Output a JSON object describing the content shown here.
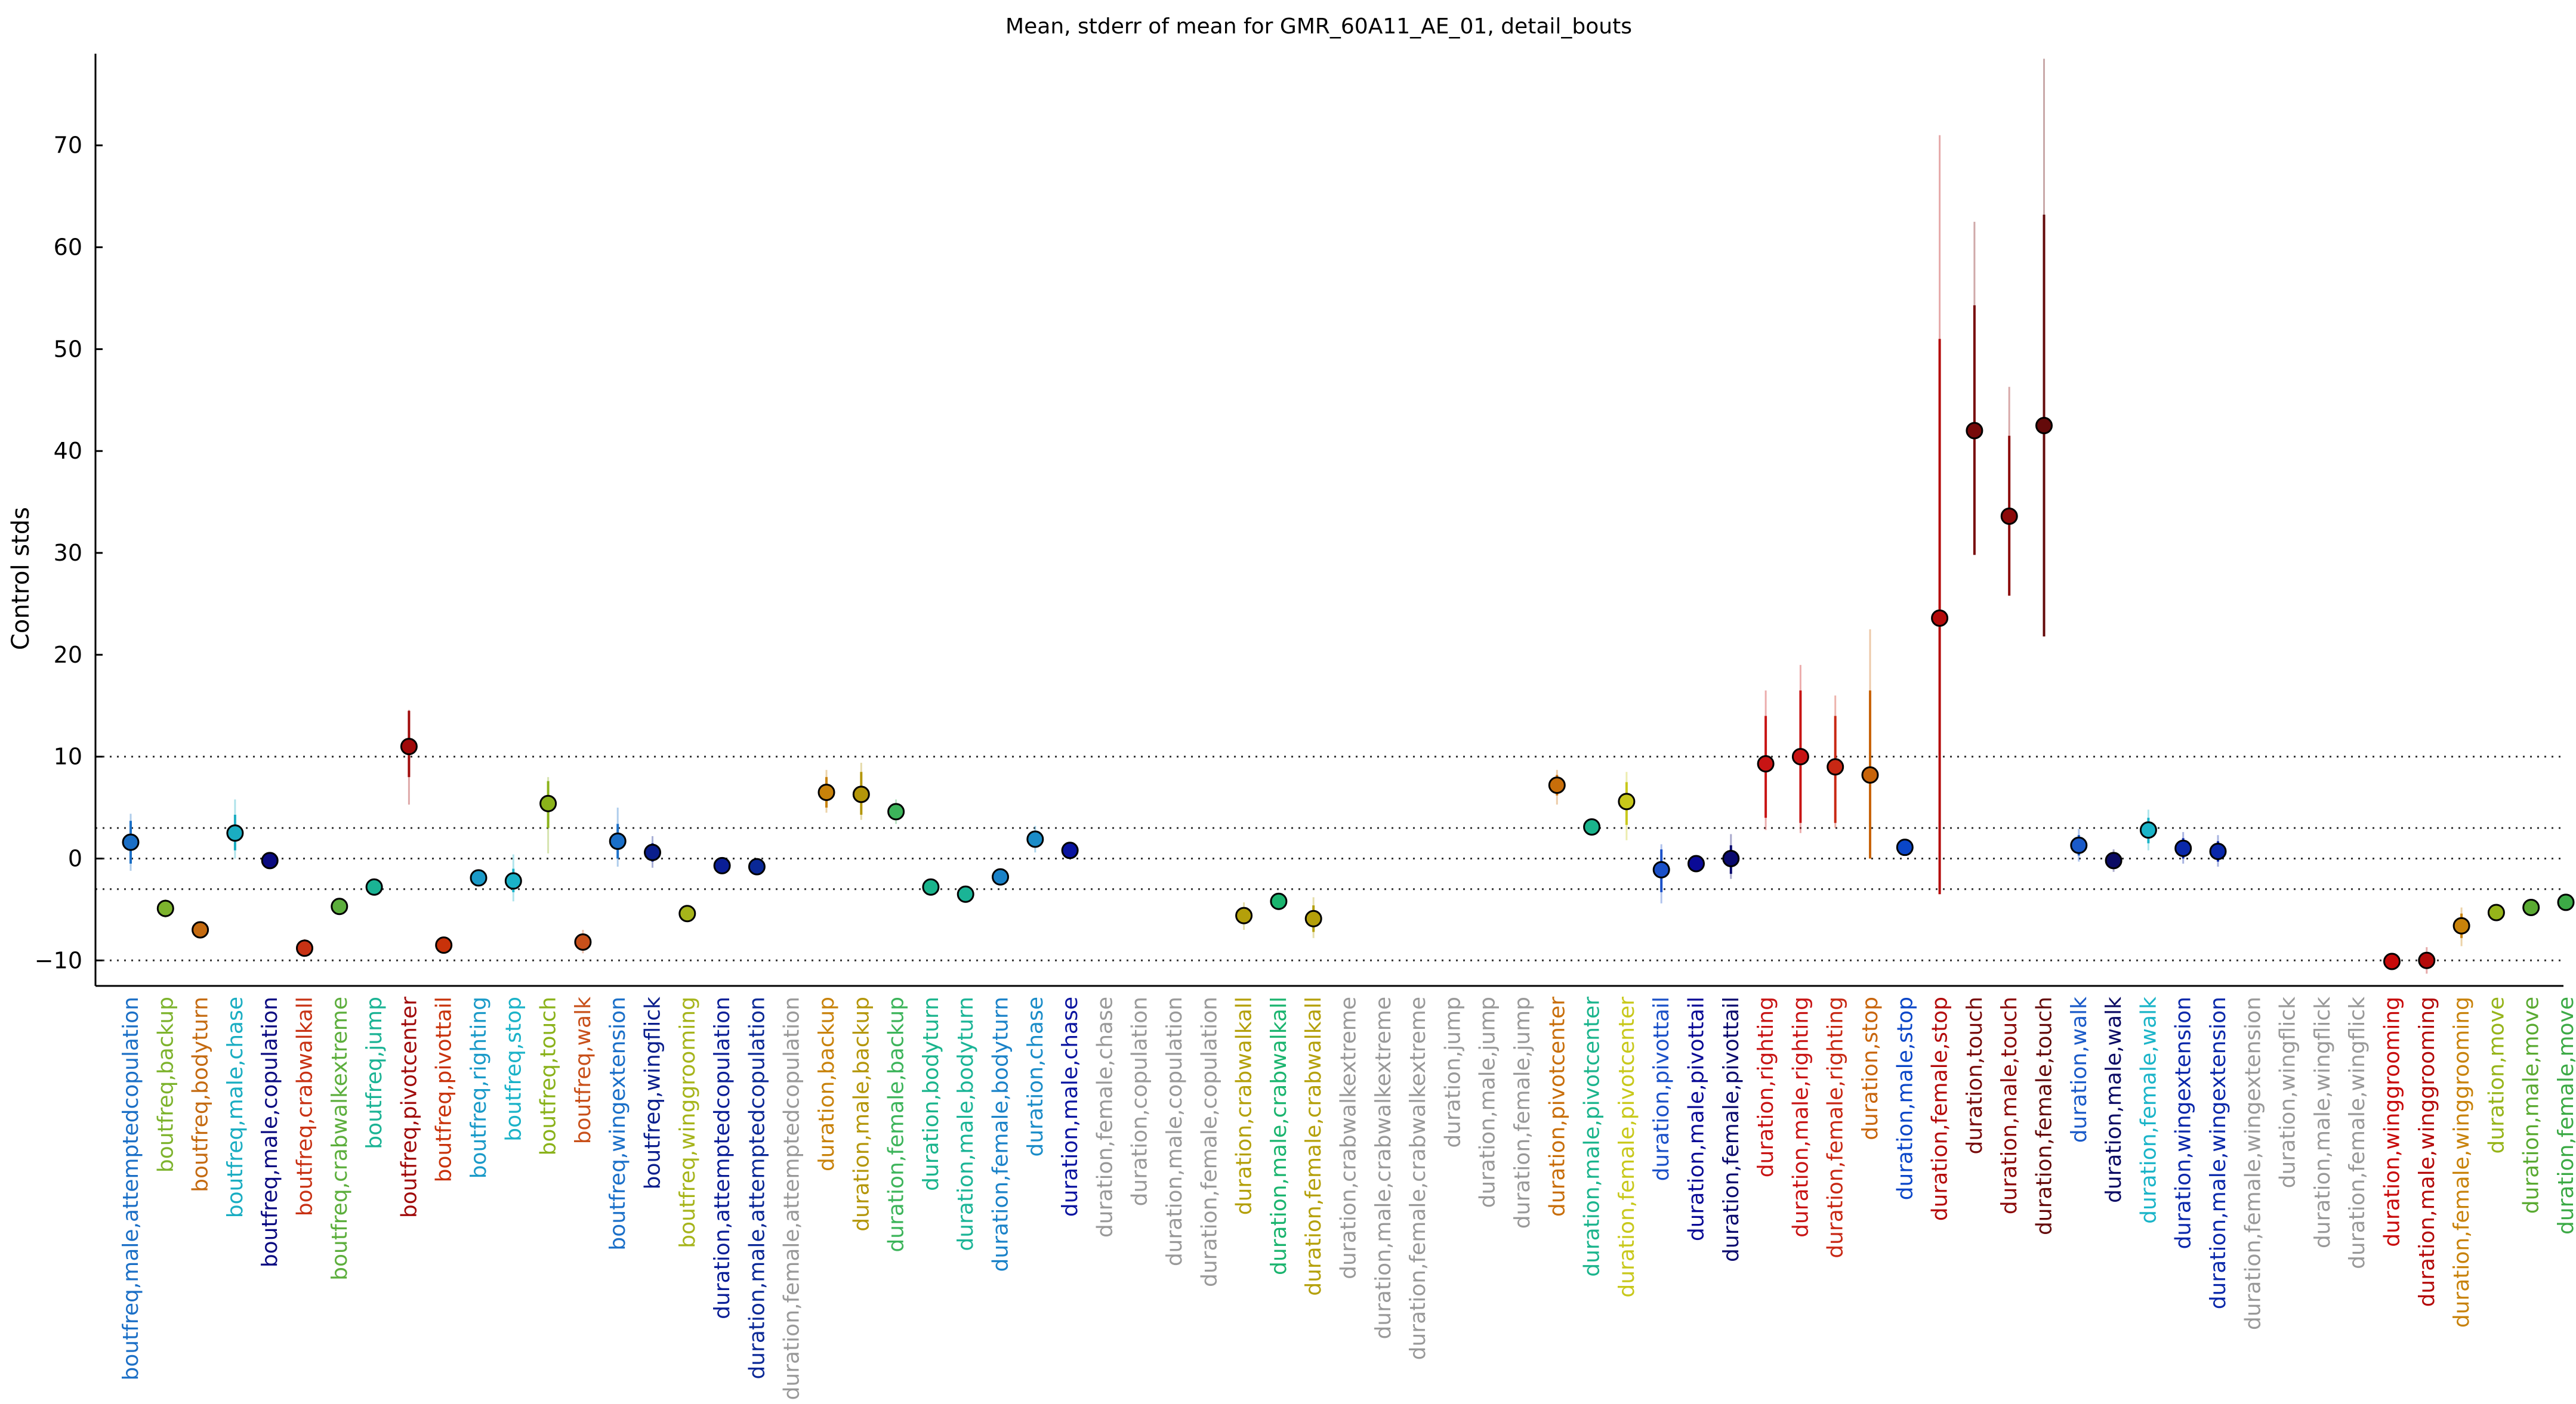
{
  "chart_data": {
    "type": "scatter",
    "title": "Mean, stderr of mean for GMR_60A11_AE_01, detail_bouts",
    "xlabel": "",
    "ylabel": "Control stds",
    "ylim": [
      -12.5,
      79
    ],
    "yticks": [
      -10,
      0,
      10,
      20,
      30,
      40,
      50,
      60,
      70
    ],
    "reference_lines": [
      10,
      3,
      0,
      -3,
      -10
    ],
    "grid": false,
    "legend": "none",
    "points": [
      {
        "label": "boutfreq,male,attemptedcopulation",
        "mean": 1.6,
        "se_lo": -0.5,
        "se_hi": 3.7,
        "ci_lo": -1.2,
        "ci_hi": 4.4,
        "color": "#1b6fc6"
      },
      {
        "label": "boutfreq,backup",
        "mean": -4.9,
        "se_lo": -5.4,
        "se_hi": -4.4,
        "ci_lo": -5.8,
        "ci_hi": -4.0,
        "color": "#7db32d"
      },
      {
        "label": "boutfreq,bodyturn",
        "mean": -7.0,
        "se_lo": -7.3,
        "se_hi": -6.7,
        "ci_lo": -7.6,
        "ci_hi": -6.4,
        "color": "#c46a10"
      },
      {
        "label": "boutfreq,male,chase",
        "mean": 2.5,
        "se_lo": 0.8,
        "se_hi": 4.3,
        "ci_lo": 0.0,
        "ci_hi": 5.8,
        "color": "#1aadc2"
      },
      {
        "label": "boutfreq,male,copulation",
        "mean": -0.2,
        "se_lo": -0.5,
        "se_hi": 0.1,
        "ci_lo": -0.8,
        "ci_hi": 0.4,
        "color": "#0a0a80"
      },
      {
        "label": "boutfreq,crabwalkall",
        "mean": -8.8,
        "se_lo": -9.2,
        "se_hi": -8.3,
        "ci_lo": -9.5,
        "ci_hi": -7.9,
        "color": "#c83214"
      },
      {
        "label": "boutfreq,crabwalkextreme",
        "mean": -4.7,
        "se_lo": -5.0,
        "se_hi": -4.4,
        "ci_lo": -5.3,
        "ci_hi": -4.1,
        "color": "#5cae3c"
      },
      {
        "label": "boutfreq,jump",
        "mean": -2.8,
        "se_lo": -3.1,
        "se_hi": -2.5,
        "ci_lo": -3.3,
        "ci_hi": -2.3,
        "color": "#1ab394"
      },
      {
        "label": "boutfreq,pivotcenter",
        "mean": 11.0,
        "se_lo": 8.0,
        "se_hi": 14.5,
        "ci_lo": 5.3,
        "ci_hi": 14.6,
        "color": "#a00a0a"
      },
      {
        "label": "boutfreq,pivottail",
        "mean": -8.5,
        "se_lo": -8.8,
        "se_hi": -8.2,
        "ci_lo": -9.1,
        "ci_hi": -7.9,
        "color": "#c8320a"
      },
      {
        "label": "boutfreq,righting",
        "mean": -1.9,
        "se_lo": -2.2,
        "se_hi": -1.6,
        "ci_lo": -2.5,
        "ci_hi": -1.3,
        "color": "#1a9ac8"
      },
      {
        "label": "boutfreq,stop",
        "mean": -2.2,
        "se_lo": -3.3,
        "se_hi": -1.0,
        "ci_lo": -4.2,
        "ci_hi": 0.4,
        "color": "#1ab2c8"
      },
      {
        "label": "boutfreq,touch",
        "mean": 5.4,
        "se_lo": 3.0,
        "se_hi": 7.6,
        "ci_lo": 0.5,
        "ci_hi": 8.0,
        "color": "#8ab21a"
      },
      {
        "label": "boutfreq,walk",
        "mean": -8.2,
        "se_lo": -8.8,
        "se_hi": -7.6,
        "ci_lo": -9.3,
        "ci_hi": -7.0,
        "color": "#c8501a"
      },
      {
        "label": "boutfreq,wingextension",
        "mean": 1.7,
        "se_lo": 0.0,
        "se_hi": 3.4,
        "ci_lo": -0.8,
        "ci_hi": 5.0,
        "color": "#1a6fc8"
      },
      {
        "label": "boutfreq,wingflick",
        "mean": 0.6,
        "se_lo": -0.3,
        "se_hi": 1.5,
        "ci_lo": -0.9,
        "ci_hi": 2.2,
        "color": "#0a1e8c"
      },
      {
        "label": "boutfreq,winggrooming",
        "mean": -5.4,
        "se_lo": -5.7,
        "se_hi": -5.1,
        "ci_lo": -6.0,
        "ci_hi": -4.8,
        "color": "#a6b41a"
      },
      {
        "label": "duration,attemptedcopulation",
        "mean": -0.7,
        "se_lo": -1.0,
        "se_hi": -0.4,
        "ci_lo": -1.3,
        "ci_hi": -0.1,
        "color": "#0a1e96"
      },
      {
        "label": "duration,male,attemptedcopulation",
        "mean": -0.8,
        "se_lo": -1.1,
        "se_hi": -0.5,
        "ci_lo": -1.4,
        "ci_hi": -0.2,
        "color": "#0a2896"
      },
      {
        "label": "duration,female,attemptedcopulation",
        "mean": null,
        "se_lo": null,
        "se_hi": null,
        "ci_lo": null,
        "ci_hi": null,
        "color": "#999999"
      },
      {
        "label": "duration,backup",
        "mean": 6.5,
        "se_lo": 5.0,
        "se_hi": 8.0,
        "ci_lo": 4.5,
        "ci_hi": 8.7,
        "color": "#c8820a"
      },
      {
        "label": "duration,male,backup",
        "mean": 6.3,
        "se_lo": 4.3,
        "se_hi": 8.5,
        "ci_lo": 3.8,
        "ci_hi": 9.4,
        "color": "#b4960a"
      },
      {
        "label": "duration,female,backup",
        "mean": 4.6,
        "se_lo": 3.8,
        "se_hi": 5.4,
        "ci_lo": 3.4,
        "ci_hi": 5.8,
        "color": "#3cb45a"
      },
      {
        "label": "duration,bodyturn",
        "mean": -2.8,
        "se_lo": -3.1,
        "se_hi": -2.5,
        "ci_lo": -3.4,
        "ci_hi": -2.2,
        "color": "#1ab48c"
      },
      {
        "label": "duration,male,bodyturn",
        "mean": -3.5,
        "se_lo": -3.8,
        "se_hi": -3.2,
        "ci_lo": -4.1,
        "ci_hi": -2.9,
        "color": "#1ab496"
      },
      {
        "label": "duration,female,bodyturn",
        "mean": -1.8,
        "se_lo": -2.1,
        "se_hi": -1.5,
        "ci_lo": -2.4,
        "ci_hi": -1.2,
        "color": "#1a82c8"
      },
      {
        "label": "duration,chase",
        "mean": 1.9,
        "se_lo": 1.1,
        "se_hi": 2.7,
        "ci_lo": 0.6,
        "ci_hi": 3.2,
        "color": "#1a8cc8"
      },
      {
        "label": "duration,male,chase",
        "mean": 0.8,
        "se_lo": 0.4,
        "se_hi": 1.2,
        "ci_lo": 0.1,
        "ci_hi": 1.5,
        "color": "#0a14a0"
      },
      {
        "label": "duration,female,chase",
        "mean": null,
        "se_lo": null,
        "se_hi": null,
        "ci_lo": null,
        "ci_hi": null,
        "color": "#999999"
      },
      {
        "label": "duration,copulation",
        "mean": null,
        "se_lo": null,
        "se_hi": null,
        "ci_lo": null,
        "ci_hi": null,
        "color": "#999999"
      },
      {
        "label": "duration,male,copulation",
        "mean": null,
        "se_lo": null,
        "se_hi": null,
        "ci_lo": null,
        "ci_hi": null,
        "color": "#999999"
      },
      {
        "label": "duration,female,copulation",
        "mean": null,
        "se_lo": null,
        "se_hi": null,
        "ci_lo": null,
        "ci_hi": null,
        "color": "#999999"
      },
      {
        "label": "duration,crabwalkall",
        "mean": -5.6,
        "se_lo": -6.4,
        "se_hi": -4.8,
        "ci_lo": -7.0,
        "ci_hi": -4.3,
        "color": "#b4a00a"
      },
      {
        "label": "duration,male,crabwalkall",
        "mean": -4.2,
        "se_lo": -4.5,
        "se_hi": -3.9,
        "ci_lo": -4.8,
        "ci_hi": -3.6,
        "color": "#1ab46e"
      },
      {
        "label": "duration,female,crabwalkall",
        "mean": -5.9,
        "se_lo": -7.2,
        "se_hi": -4.6,
        "ci_lo": -7.8,
        "ci_hi": -3.8,
        "color": "#b4a00a"
      },
      {
        "label": "duration,crabwalkextreme",
        "mean": null,
        "se_lo": null,
        "se_hi": null,
        "ci_lo": null,
        "ci_hi": null,
        "color": "#999999"
      },
      {
        "label": "duration,male,crabwalkextreme",
        "mean": null,
        "se_lo": null,
        "se_hi": null,
        "ci_lo": null,
        "ci_hi": null,
        "color": "#999999"
      },
      {
        "label": "duration,female,crabwalkextreme",
        "mean": null,
        "se_lo": null,
        "se_hi": null,
        "ci_lo": null,
        "ci_hi": null,
        "color": "#999999"
      },
      {
        "label": "duration,jump",
        "mean": null,
        "se_lo": null,
        "se_hi": null,
        "ci_lo": null,
        "ci_hi": null,
        "color": "#999999"
      },
      {
        "label": "duration,male,jump",
        "mean": null,
        "se_lo": null,
        "se_hi": null,
        "ci_lo": null,
        "ci_hi": null,
        "color": "#999999"
      },
      {
        "label": "duration,female,jump",
        "mean": null,
        "se_lo": null,
        "se_hi": null,
        "ci_lo": null,
        "ci_hi": null,
        "color": "#999999"
      },
      {
        "label": "duration,pivotcenter",
        "mean": 7.2,
        "se_lo": 6.2,
        "se_hi": 8.2,
        "ci_lo": 5.3,
        "ci_hi": 8.7,
        "color": "#c86e0a"
      },
      {
        "label": "duration,male,pivotcenter",
        "mean": 3.1,
        "se_lo": 2.8,
        "se_hi": 3.4,
        "ci_lo": 2.5,
        "ci_hi": 3.7,
        "color": "#1ab48c"
      },
      {
        "label": "duration,female,pivotcenter",
        "mean": 5.6,
        "se_lo": 3.3,
        "se_hi": 7.5,
        "ci_lo": 1.8,
        "ci_hi": 8.5,
        "color": "#c8c81a"
      },
      {
        "label": "duration,pivottail",
        "mean": -1.1,
        "se_lo": -3.3,
        "se_hi": 0.9,
        "ci_lo": -4.4,
        "ci_hi": 1.4,
        "color": "#1a50c8"
      },
      {
        "label": "duration,male,pivottail",
        "mean": -0.5,
        "se_lo": -0.9,
        "se_hi": -0.1,
        "ci_lo": -1.2,
        "ci_hi": 0.3,
        "color": "#0a0a96"
      },
      {
        "label": "duration,female,pivottail",
        "mean": 0.0,
        "se_lo": -1.5,
        "se_hi": 1.3,
        "ci_lo": -2.0,
        "ci_hi": 2.4,
        "color": "#0a0a6e"
      },
      {
        "label": "duration,righting",
        "mean": 9.3,
        "se_lo": 4.0,
        "se_hi": 14.0,
        "ci_lo": 2.8,
        "ci_hi": 16.5,
        "color": "#c81414"
      },
      {
        "label": "duration,male,righting",
        "mean": 10.0,
        "se_lo": 3.5,
        "se_hi": 16.5,
        "ci_lo": 2.5,
        "ci_hi": 19.0,
        "color": "#c81414"
      },
      {
        "label": "duration,female,righting",
        "mean": 9.0,
        "se_lo": 3.5,
        "se_hi": 14.0,
        "ci_lo": 3.0,
        "ci_hi": 16.0,
        "color": "#c82814"
      },
      {
        "label": "duration,stop",
        "mean": 8.2,
        "se_lo": 0.0,
        "se_hi": 16.5,
        "ci_lo": 0.0,
        "ci_hi": 22.5,
        "color": "#c8640a"
      },
      {
        "label": "duration,male,stop",
        "mean": 1.1,
        "se_lo": 0.7,
        "se_hi": 1.5,
        "ci_lo": 0.4,
        "ci_hi": 1.8,
        "color": "#0a46c8"
      },
      {
        "label": "duration,female,stop",
        "mean": 23.6,
        "se_lo": -3.5,
        "se_hi": 51.0,
        "ci_lo": 6.0,
        "ci_hi": 71.0,
        "color": "#b40a0a"
      },
      {
        "label": "duration,touch",
        "mean": 42.0,
        "se_lo": 29.8,
        "se_hi": 54.3,
        "ci_lo": 33.0,
        "ci_hi": 62.5,
        "color": "#780a0a"
      },
      {
        "label": "duration,male,touch",
        "mean": 33.6,
        "se_lo": 25.8,
        "se_hi": 41.5,
        "ci_lo": 26.0,
        "ci_hi": 46.3,
        "color": "#8c0a0a"
      },
      {
        "label": "duration,female,touch",
        "mean": 42.5,
        "se_lo": 21.8,
        "se_hi": 63.2,
        "ci_lo": 27.0,
        "ci_hi": 78.5,
        "color": "#640a0a"
      },
      {
        "label": "duration,walk",
        "mean": 1.3,
        "se_lo": 0.3,
        "se_hi": 2.3,
        "ci_lo": -0.3,
        "ci_hi": 2.9,
        "color": "#1a5ac8"
      },
      {
        "label": "duration,male,walk",
        "mean": -0.2,
        "se_lo": -0.9,
        "se_hi": 0.5,
        "ci_lo": -1.3,
        "ci_hi": 0.9,
        "color": "#0a0a64"
      },
      {
        "label": "duration,female,walk",
        "mean": 2.8,
        "se_lo": 1.5,
        "se_hi": 4.0,
        "ci_lo": 0.8,
        "ci_hi": 4.8,
        "color": "#1ab4c8"
      },
      {
        "label": "duration,wingextension",
        "mean": 1.0,
        "se_lo": 0.0,
        "se_hi": 2.0,
        "ci_lo": -0.5,
        "ci_hi": 2.6,
        "color": "#0a28aa"
      },
      {
        "label": "duration,male,wingextension",
        "mean": 0.7,
        "se_lo": -0.3,
        "se_hi": 1.7,
        "ci_lo": -0.8,
        "ci_hi": 2.3,
        "color": "#0a28aa"
      },
      {
        "label": "duration,female,wingextension",
        "mean": null,
        "se_lo": null,
        "se_hi": null,
        "ci_lo": null,
        "ci_hi": null,
        "color": "#999999"
      },
      {
        "label": "duration,wingflick",
        "mean": null,
        "se_lo": null,
        "se_hi": null,
        "ci_lo": null,
        "ci_hi": null,
        "color": "#999999"
      },
      {
        "label": "duration,male,wingflick",
        "mean": null,
        "se_lo": null,
        "se_hi": null,
        "ci_lo": null,
        "ci_hi": null,
        "color": "#999999"
      },
      {
        "label": "duration,female,wingflick",
        "mean": null,
        "se_lo": null,
        "se_hi": null,
        "ci_lo": null,
        "ci_hi": null,
        "color": "#999999"
      },
      {
        "label": "duration,winggrooming",
        "mean": -10.1,
        "se_lo": -10.4,
        "se_hi": -9.8,
        "ci_lo": -10.7,
        "ci_hi": -9.5,
        "color": "#c80a0a"
      },
      {
        "label": "duration,male,winggrooming",
        "mean": -10.0,
        "se_lo": -10.8,
        "se_hi": -9.2,
        "ci_lo": -11.3,
        "ci_hi": -8.7,
        "color": "#b40a0a"
      },
      {
        "label": "duration,female,winggrooming",
        "mean": -6.6,
        "se_lo": -7.8,
        "se_hi": -5.4,
        "ci_lo": -8.6,
        "ci_hi": -4.8,
        "color": "#c8820a"
      },
      {
        "label": "duration,move",
        "mean": -5.3,
        "se_lo": -5.6,
        "se_hi": -5.0,
        "ci_lo": -5.9,
        "ci_hi": -4.7,
        "color": "#96b41a"
      },
      {
        "label": "duration,male,move",
        "mean": -4.8,
        "se_lo": -5.1,
        "se_hi": -4.5,
        "ci_lo": -5.4,
        "ci_hi": -4.2,
        "color": "#5aaa32"
      },
      {
        "label": "duration,female,move",
        "mean": -4.3,
        "se_lo": -4.6,
        "se_hi": -4.0,
        "ci_lo": -4.9,
        "ci_hi": -3.7,
        "color": "#3caa46"
      }
    ]
  }
}
